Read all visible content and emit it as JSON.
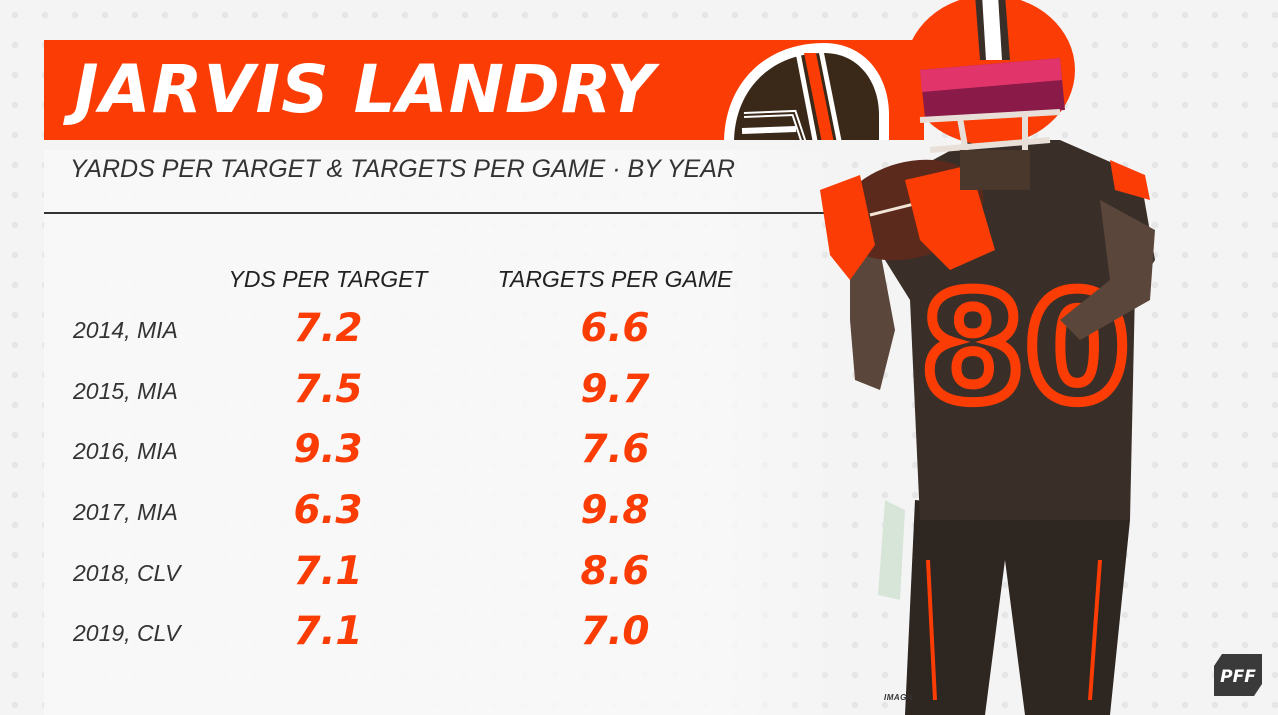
{
  "header": {
    "player_name": "JARVIS LANDRY",
    "subtitle": "YARDS PER TARGET & TARGETS PER GAME · BY YEAR"
  },
  "columns": {
    "ypt": "YDS PER TARGET",
    "tpg": "TARGETS PER GAME"
  },
  "rows": [
    {
      "season": "2014, MIA",
      "ypt": "7.2",
      "tpg": "6.6"
    },
    {
      "season": "2015, MIA",
      "ypt": "7.5",
      "tpg": "9.7"
    },
    {
      "season": "2016, MIA",
      "ypt": "9.3",
      "tpg": "7.6"
    },
    {
      "season": "2017, MIA",
      "ypt": "6.3",
      "tpg": "9.8"
    },
    {
      "season": "2018, CLV",
      "ypt": "7.1",
      "tpg": "8.6"
    },
    {
      "season": "2019, CLV",
      "ypt": "7.1",
      "tpg": "7.0"
    }
  ],
  "photo_credit": "IMAGN",
  "brand_logo": "PFF",
  "colors": {
    "accent": "#fb3c05",
    "jersey": "#3a2f28",
    "text": "#333333",
    "background": "#f4f4f4"
  },
  "icons": [
    "browns-helmet-icon",
    "player-photo",
    "pff-logo-icon"
  ]
}
